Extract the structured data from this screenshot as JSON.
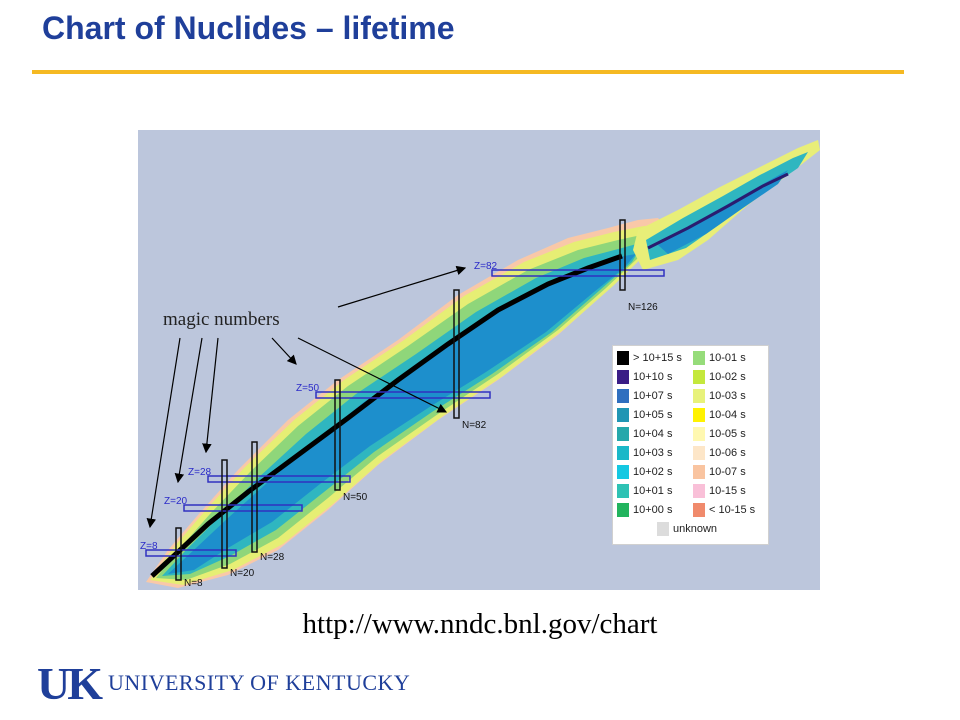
{
  "slide": {
    "title": "Chart of Nuclides – lifetime",
    "annotation": "magic numbers",
    "url": "http://www.nndc.bnl.gov/chart",
    "logo_mark": "UK",
    "logo_text": "UNIVERSITY OF KENTUCKY"
  },
  "magic_labels": {
    "z8": "Z=8",
    "z20": "Z=20",
    "z28": "Z=28",
    "z50": "Z=50",
    "z82": "Z=82",
    "n8": "N=8",
    "n20": "N=20",
    "n28": "N=28",
    "n50": "N=50",
    "n82": "N=82",
    "n126": "N=126"
  },
  "legend": {
    "left": [
      {
        "label": "> 10+15 s",
        "color": "#000000"
      },
      {
        "label": "10+10 s",
        "color": "#3a1d86"
      },
      {
        "label": "10+07 s",
        "color": "#2f6fbf"
      },
      {
        "label": "10+05 s",
        "color": "#2096b4"
      },
      {
        "label": "10+04 s",
        "color": "#25a8ab"
      },
      {
        "label": "10+03 s",
        "color": "#1ab8c8"
      },
      {
        "label": "10+02 s",
        "color": "#14c8e2"
      },
      {
        "label": "10+01 s",
        "color": "#2ec2b4"
      },
      {
        "label": "10+00 s",
        "color": "#22b45e"
      }
    ],
    "right": [
      {
        "label": "10-01 s",
        "color": "#96dc7a"
      },
      {
        "label": "10-02 s",
        "color": "#c4e83c"
      },
      {
        "label": "10-03 s",
        "color": "#e8f27a"
      },
      {
        "label": "10-04 s",
        "color": "#fff200"
      },
      {
        "label": "10-05 s",
        "color": "#fff8b0"
      },
      {
        "label": "10-06 s",
        "color": "#fde6c8"
      },
      {
        "label": "10-07 s",
        "color": "#f9c4a0"
      },
      {
        "label": "10-15 s",
        "color": "#f9c0d8"
      },
      {
        "label": "< 10-15 s",
        "color": "#f08a6c"
      }
    ],
    "unknown": {
      "label": "unknown",
      "color": "#dcdcdc"
    }
  }
}
